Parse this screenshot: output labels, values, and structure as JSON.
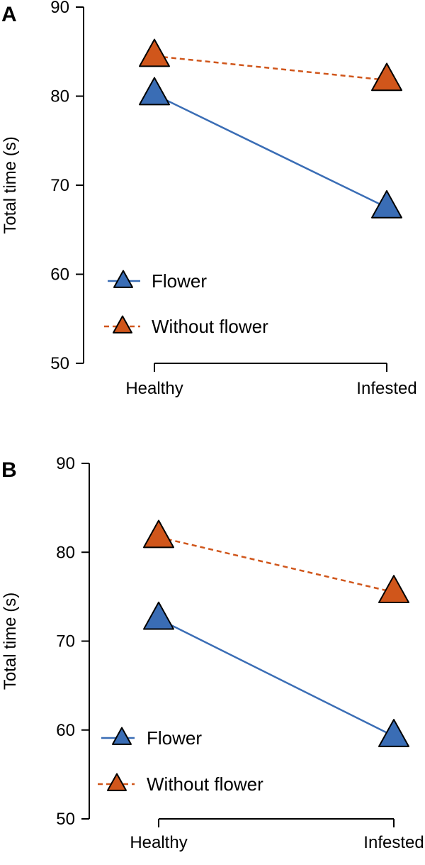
{
  "colors": {
    "flower": "#3a6db5",
    "without_flower": "#d0561b",
    "outline": "#000000"
  },
  "chart_data": [
    {
      "type": "line",
      "panel_label": "A",
      "categories": [
        "Healthy",
        "Infested"
      ],
      "ylabel": "Total time (s)",
      "xlabel": "",
      "ylim": [
        50,
        90
      ],
      "yticks": [
        50,
        60,
        70,
        80,
        90
      ],
      "marker": "triangle",
      "legend_position": "bottom-left",
      "series": [
        {
          "name": "Flower",
          "values": [
            80.2,
            67.5
          ],
          "color": "#3a6db5",
          "line_style": "solid"
        },
        {
          "name": "Without flower",
          "values": [
            84.5,
            81.8
          ],
          "color": "#d0561b",
          "line_style": "dashed"
        }
      ]
    },
    {
      "type": "line",
      "panel_label": "B",
      "categories": [
        "Healthy",
        "Infested"
      ],
      "ylabel": "Total time (s)",
      "xlabel": "",
      "ylim": [
        50,
        90
      ],
      "yticks": [
        50,
        60,
        70,
        80,
        90
      ],
      "marker": "triangle",
      "legend_position": "bottom-left",
      "series": [
        {
          "name": "Flower",
          "values": [
            72.5,
            59.3
          ],
          "color": "#3a6db5",
          "line_style": "solid"
        },
        {
          "name": "Without flower",
          "values": [
            81.7,
            75.5
          ],
          "color": "#d0561b",
          "line_style": "dashed"
        }
      ]
    }
  ]
}
